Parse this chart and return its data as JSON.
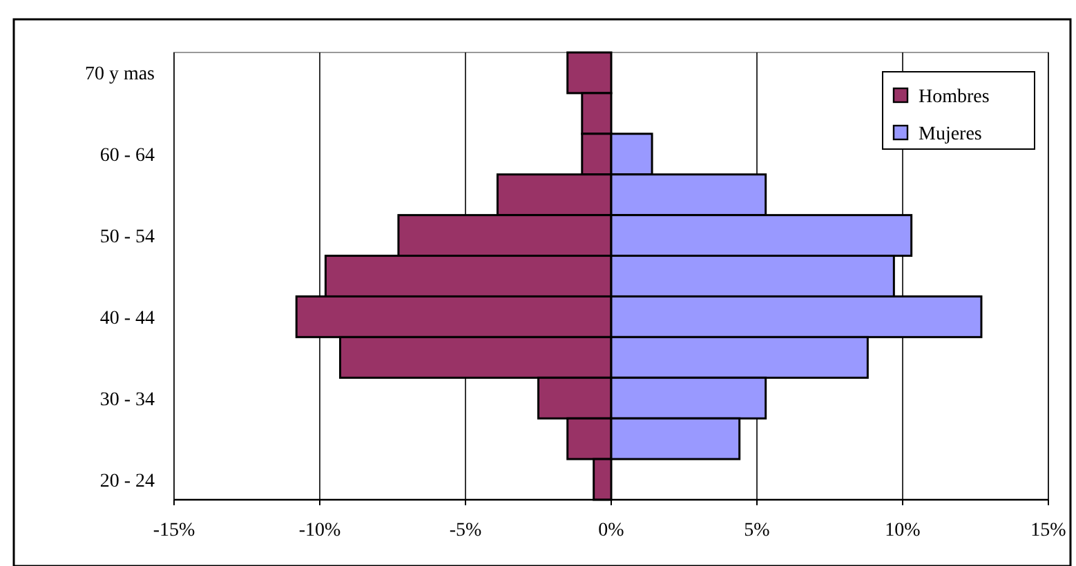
{
  "chart_data": {
    "type": "bar",
    "orientation": "horizontal",
    "categories": [
      "70 y mas",
      null,
      "60 - 64",
      null,
      "50 - 54",
      null,
      "40 - 44",
      null,
      "30 - 34",
      null,
      "20 - 24"
    ],
    "series": [
      {
        "name": "Hombres",
        "color": "#993366",
        "values": [
          -1.5,
          -1.0,
          -1.0,
          -3.9,
          -7.3,
          -9.8,
          -10.8,
          -9.3,
          -2.5,
          -1.5,
          -0.6
        ]
      },
      {
        "name": "Mujeres",
        "color": "#9999ff",
        "values": [
          null,
          null,
          1.4,
          5.3,
          10.3,
          9.7,
          12.7,
          8.8,
          5.3,
          4.4,
          null
        ]
      }
    ],
    "xlim": [
      -15,
      15
    ],
    "xticks": [
      {
        "value": -15,
        "label": "-15%"
      },
      {
        "value": -10,
        "label": "-10%"
      },
      {
        "value": -5,
        "label": "-5%"
      },
      {
        "value": 0,
        "label": "0%"
      },
      {
        "value": 5,
        "label": "5%"
      },
      {
        "value": 10,
        "label": "10%"
      },
      {
        "value": 15,
        "label": "15%"
      }
    ],
    "stacked": true,
    "grid": "x",
    "legend": "top right"
  }
}
